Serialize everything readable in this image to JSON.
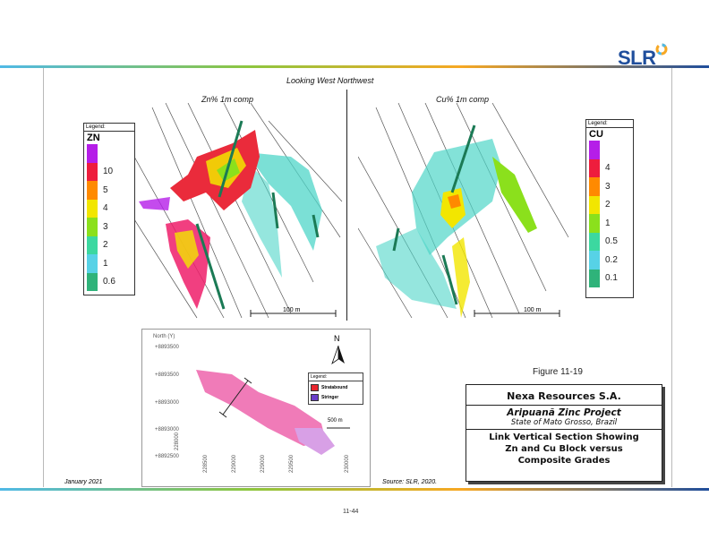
{
  "header": {
    "logo_text": "SLR",
    "bar_colors": [
      "#50b9e6",
      "#8dc63f",
      "#f7a823",
      "#1f4e9c"
    ]
  },
  "figure": {
    "view_label": "Looking West Northwest",
    "left_panel": {
      "title": "Zn% 1m comp",
      "legend": {
        "heading": "Legend:",
        "variable": "ZN",
        "items": [
          {
            "label": "",
            "color": "#b51ee8"
          },
          {
            "label": "10",
            "color": "#ee1d3d"
          },
          {
            "label": "5",
            "color": "#ff8a00"
          },
          {
            "label": "4",
            "color": "#f2e600"
          },
          {
            "label": "3",
            "color": "#8be01c"
          },
          {
            "label": "2",
            "color": "#3cd8a0"
          },
          {
            "label": "1",
            "color": "#57d2e6"
          },
          {
            "label": "0.6",
            "color": "#2fb37a"
          }
        ]
      },
      "scale_label": "100 m"
    },
    "right_panel": {
      "title": "Cu% 1m comp",
      "legend": {
        "heading": "Legend:",
        "variable": "CU",
        "items": [
          {
            "label": "",
            "color": "#b51ee8"
          },
          {
            "label": "4",
            "color": "#ee1d3d"
          },
          {
            "label": "3",
            "color": "#ff8a00"
          },
          {
            "label": "2",
            "color": "#f2e600"
          },
          {
            "label": "1",
            "color": "#8be01c"
          },
          {
            "label": "0.5",
            "color": "#3cd8a0"
          },
          {
            "label": "0.2",
            "color": "#57d2e6"
          },
          {
            "label": "0.1",
            "color": "#2fb37a"
          }
        ]
      },
      "scale_label": "100 m"
    },
    "inset": {
      "north_label": "N",
      "y_ticks": [
        "+8893500",
        "+8893500",
        "+8893000",
        "+8893000",
        "+8892500"
      ],
      "x_ticks": [
        "228000",
        "228500",
        "229000",
        "229000",
        "229500",
        "230000"
      ],
      "legend": {
        "heading": "Legend:",
        "items": [
          {
            "label": "Stratabound",
            "color": "#e8262e"
          },
          {
            "label": "Stringer",
            "color": "#6a3fc9"
          }
        ]
      },
      "scale_label": "500 m",
      "body_colors": [
        "#f07bb8",
        "#d8a0e6"
      ]
    }
  },
  "title_block": {
    "figure_number": "Figure 11-19",
    "company": "Nexa Resources S.A.",
    "project": "Aripuanã Zinc Project",
    "location": "State of Mato Grosso, Brazil",
    "caption_line1": "Link Vertical Section Showing",
    "caption_line2": "Zn and Cu Block versus",
    "caption_line3": "Composite Grades"
  },
  "footer": {
    "date": "January 2021",
    "source": "Source: SLR, 2020.",
    "page_number": "11-44"
  }
}
